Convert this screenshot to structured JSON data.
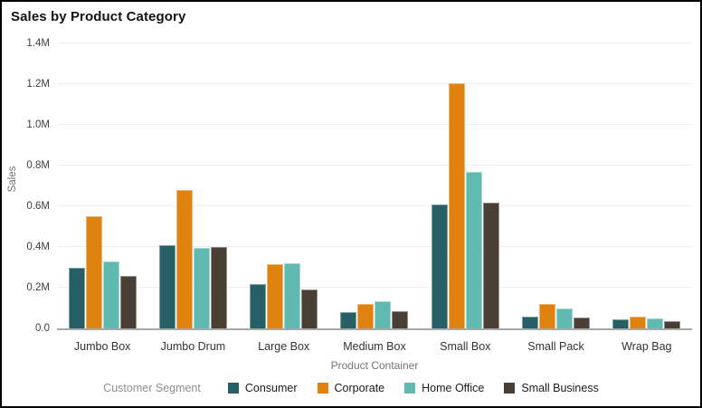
{
  "title": "Sales by Product Category",
  "axes": {
    "x_title": "Product Container",
    "y_title": "Sales"
  },
  "legend": {
    "title": "Customer Segment"
  },
  "chart_data": {
    "type": "bar",
    "title": "Sales by Product Category",
    "xlabel": "Product Container",
    "ylabel": "Sales",
    "legend_title": "Customer Segment",
    "legend_position": "bottom",
    "grid": true,
    "ylim": [
      0,
      1.4
    ],
    "y_unit": "M",
    "yticks": [
      {
        "label": "0.0",
        "value": 0.0
      },
      {
        "label": "0.2M",
        "value": 0.2
      },
      {
        "label": "0.4M",
        "value": 0.4
      },
      {
        "label": "0.6M",
        "value": 0.6
      },
      {
        "label": "0.8M",
        "value": 0.8
      },
      {
        "label": "1.0M",
        "value": 1.0
      },
      {
        "label": "1.2M",
        "value": 1.2
      },
      {
        "label": "1.4M",
        "value": 1.4
      }
    ],
    "categories": [
      "Jumbo Box",
      "Jumbo Drum",
      "Large Box",
      "Medium Box",
      "Small Box",
      "Small Pack",
      "Wrap Bag"
    ],
    "series": [
      {
        "name": "Consumer",
        "color": "#275f66",
        "values": [
          0.3,
          0.41,
          0.22,
          0.08,
          0.61,
          0.06,
          0.045
        ]
      },
      {
        "name": "Corporate",
        "color": "#df820f",
        "values": [
          0.55,
          0.68,
          0.315,
          0.12,
          1.205,
          0.12,
          0.06
        ]
      },
      {
        "name": "Home Office",
        "color": "#60bab2",
        "values": [
          0.33,
          0.395,
          0.32,
          0.135,
          0.77,
          0.1,
          0.05
        ]
      },
      {
        "name": "Small Business",
        "color": "#4a3f35",
        "values": [
          0.26,
          0.4,
          0.19,
          0.085,
          0.62,
          0.055,
          0.035
        ]
      }
    ]
  }
}
